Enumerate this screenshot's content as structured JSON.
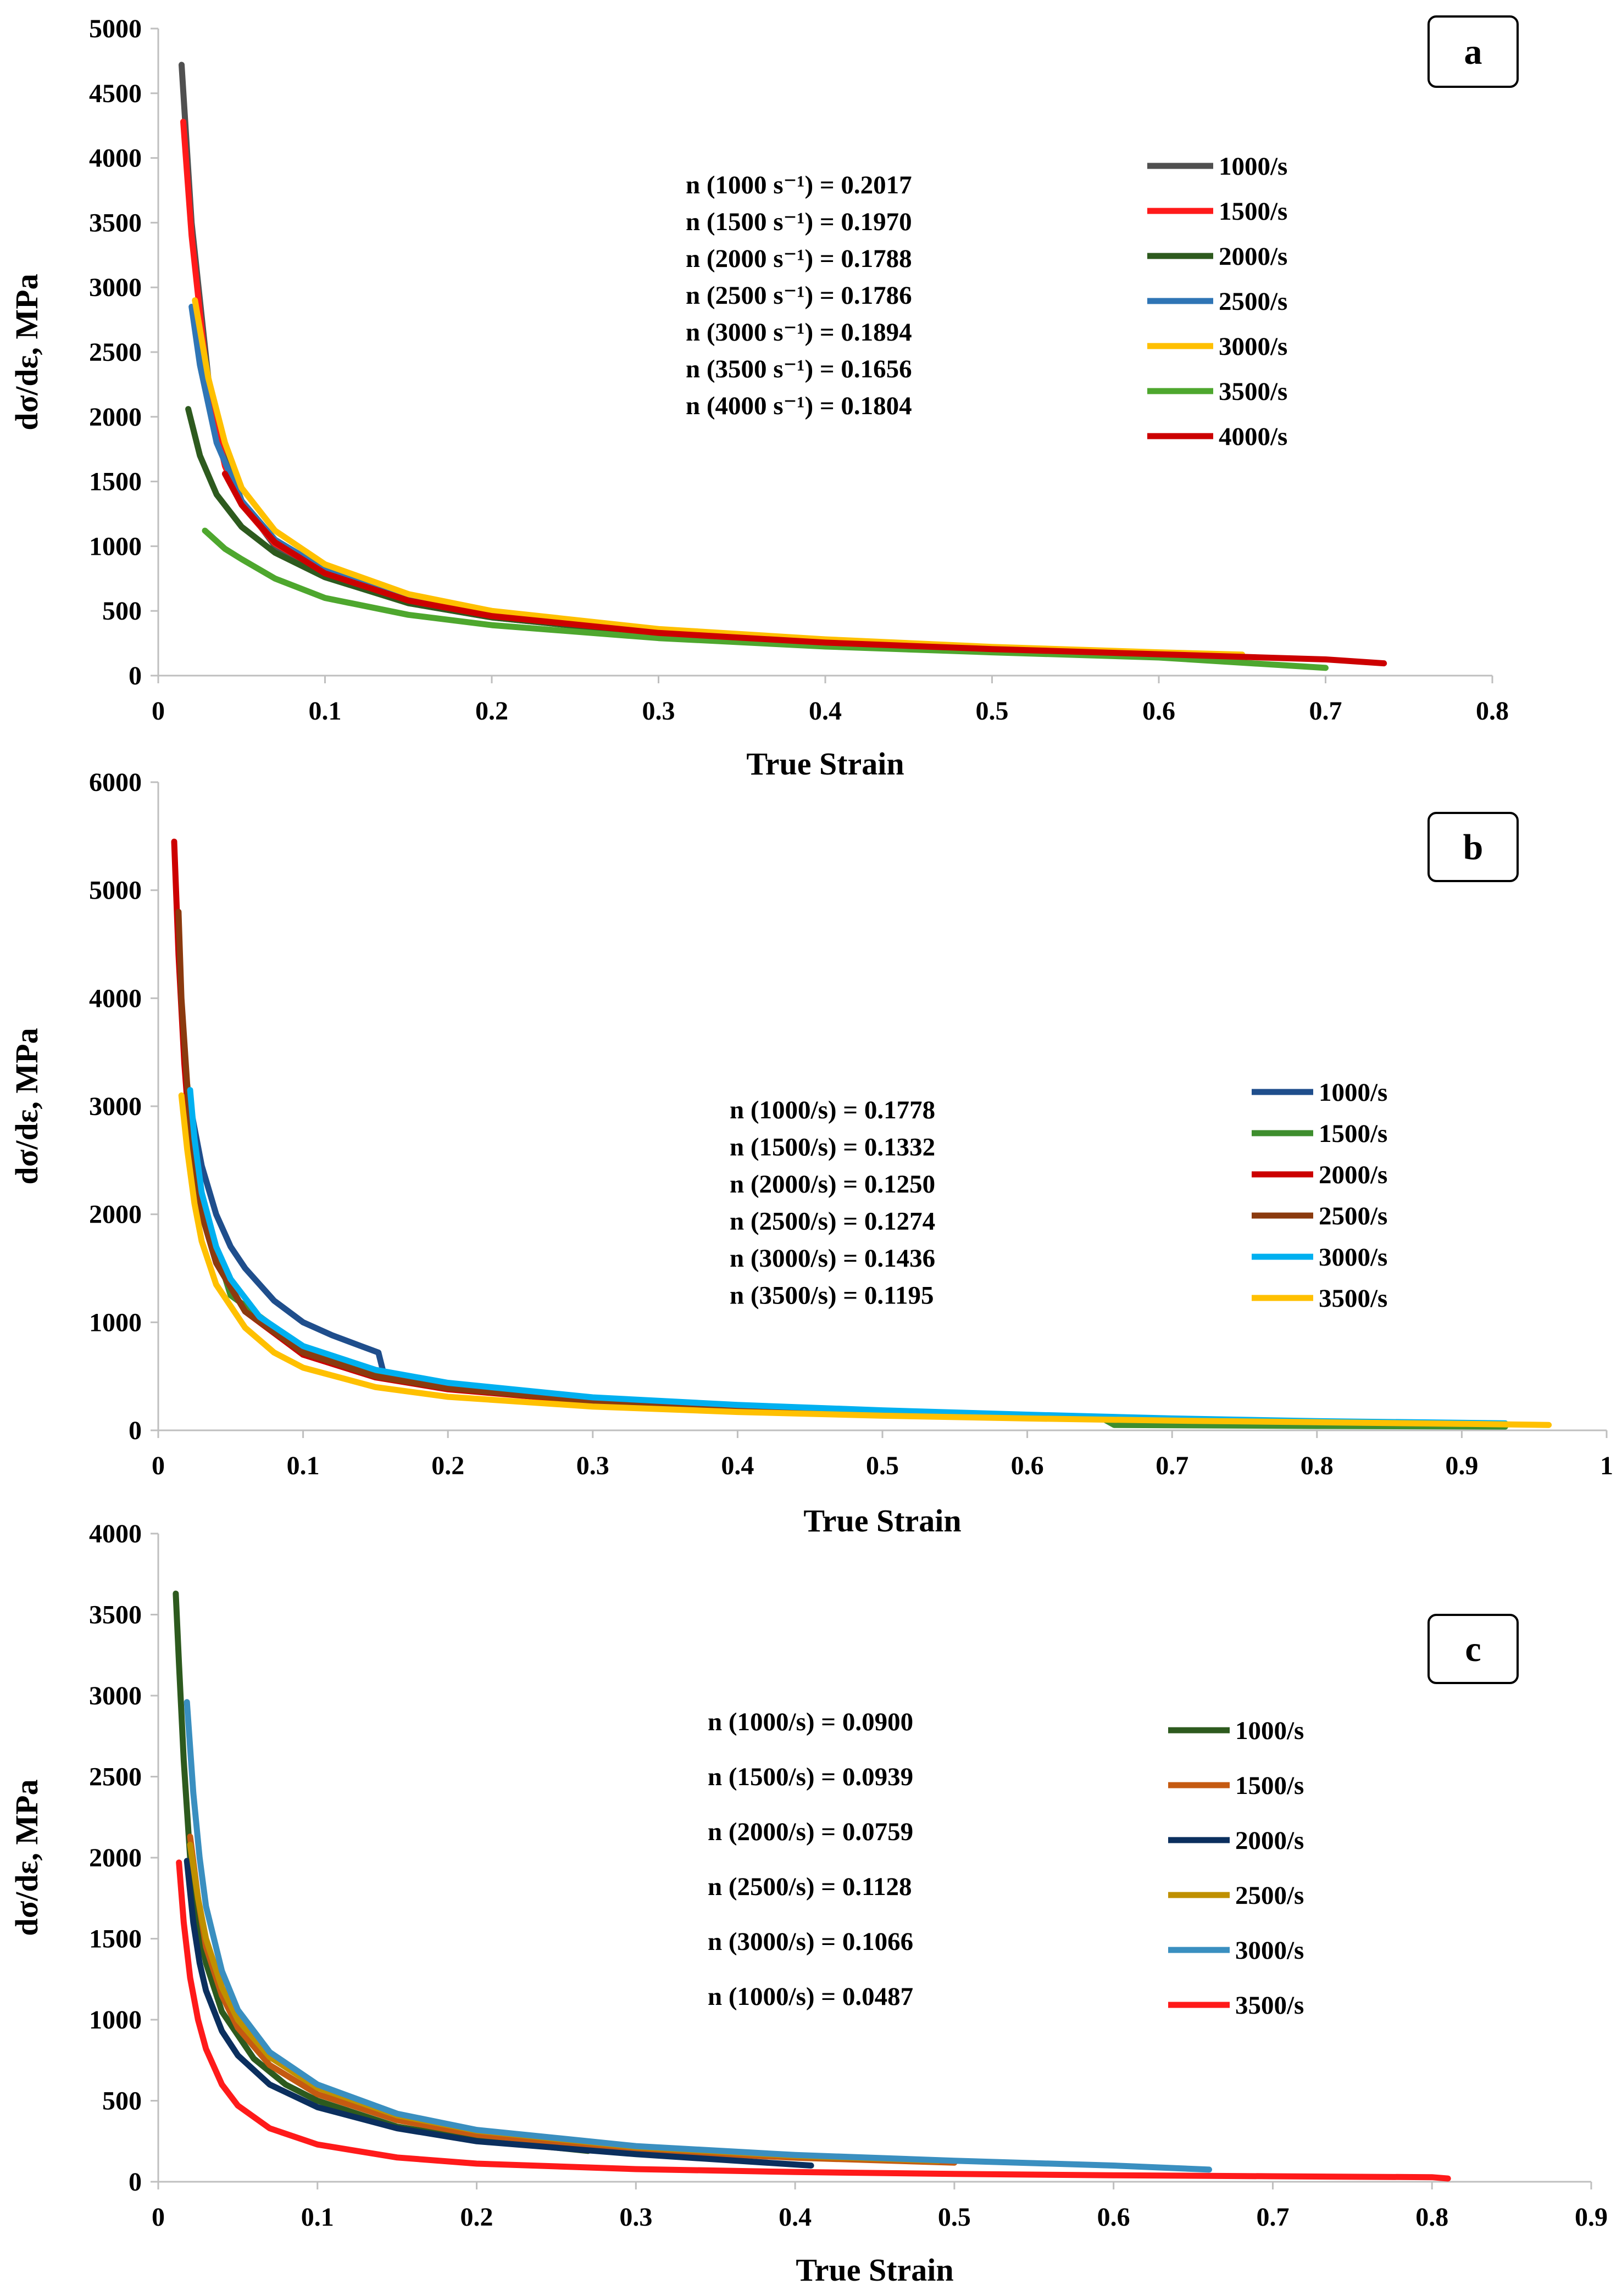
{
  "chart_data": [
    {
      "type": "line",
      "panel": "a",
      "xlabel": "True Strain",
      "ylabel": "dσ/dε, MPa",
      "xlim": [
        0,
        0.8
      ],
      "ylim": [
        0,
        5000
      ],
      "xticks": [
        0,
        0.1,
        0.2,
        0.3,
        0.4,
        0.5,
        0.6,
        0.7,
        0.8
      ],
      "xtick_labels": [
        "0",
        "0.1",
        "0.2",
        "0.3",
        "0.4",
        "0.5",
        "0.6",
        "0.7",
        "0.8"
      ],
      "yticks": [
        0,
        500,
        1000,
        1500,
        2000,
        2500,
        3000,
        3500,
        4000,
        4500,
        5000
      ],
      "ytick_labels": [
        "0",
        "500",
        "1000",
        "1500",
        "2000",
        "2500",
        "3000",
        "3500",
        "4000",
        "4500",
        "5000"
      ],
      "legend_position": "top-right",
      "annotations": [
        "n (1000 s⁻¹) = 0.2017",
        "n (1500 s⁻¹) = 0.1970",
        "n (2000 s⁻¹) = 0.1788",
        "n (2500 s⁻¹) = 0.1786",
        "n (3000 s⁻¹) = 0.1894",
        "n (3500 s⁻¹) = 0.1656",
        "n (4000 s⁻¹) = 0.1804"
      ],
      "series": [
        {
          "name": "1000/s",
          "color": "#505050",
          "x": [
            0.014,
            0.02,
            0.03,
            0.04,
            0.05,
            0.07,
            0.1,
            0.15,
            0.2,
            0.3,
            0.4,
            0.5,
            0.6,
            0.65
          ],
          "y": [
            4720,
            3500,
            2300,
            1700,
            1350,
            1000,
            780,
            560,
            450,
            320,
            250,
            200,
            160,
            145
          ]
        },
        {
          "name": "1500/s",
          "color": "#ff1a1a",
          "x": [
            0.015,
            0.02,
            0.03,
            0.04,
            0.05,
            0.07,
            0.1,
            0.15,
            0.2,
            0.3,
            0.4,
            0.5,
            0.6,
            0.65
          ],
          "y": [
            4280,
            3400,
            2200,
            1620,
            1320,
            1020,
            800,
            580,
            465,
            330,
            255,
            205,
            165,
            150
          ]
        },
        {
          "name": "2000/s",
          "color": "#2d5a1e",
          "x": [
            0.018,
            0.025,
            0.035,
            0.05,
            0.07,
            0.1,
            0.15,
            0.2,
            0.3,
            0.4,
            0.5,
            0.6,
            0.65
          ],
          "y": [
            2060,
            1700,
            1400,
            1150,
            950,
            760,
            560,
            450,
            320,
            250,
            200,
            165,
            150
          ]
        },
        {
          "name": "2500/s",
          "color": "#2f75b5",
          "x": [
            0.02,
            0.025,
            0.035,
            0.05,
            0.07,
            0.1,
            0.15,
            0.2,
            0.3,
            0.4,
            0.5,
            0.6,
            0.65
          ],
          "y": [
            2850,
            2400,
            1800,
            1350,
            1050,
            820,
            600,
            480,
            340,
            262,
            210,
            170,
            155
          ]
        },
        {
          "name": "3000/s",
          "color": "#ffc000",
          "x": [
            0.022,
            0.03,
            0.04,
            0.05,
            0.07,
            0.1,
            0.15,
            0.2,
            0.3,
            0.4,
            0.5,
            0.6,
            0.65
          ],
          "y": [
            2900,
            2300,
            1800,
            1450,
            1120,
            860,
            630,
            500,
            360,
            280,
            222,
            180,
            162
          ]
        },
        {
          "name": "3500/s",
          "color": "#4ea72e",
          "x": [
            0.028,
            0.04,
            0.05,
            0.07,
            0.1,
            0.15,
            0.2,
            0.3,
            0.4,
            0.5,
            0.6,
            0.7
          ],
          "y": [
            1120,
            980,
            900,
            750,
            600,
            470,
            390,
            290,
            225,
            180,
            140,
            60
          ]
        },
        {
          "name": "4000/s",
          "color": "#cc0000",
          "x": [
            0.04,
            0.05,
            0.07,
            0.1,
            0.15,
            0.2,
            0.3,
            0.4,
            0.5,
            0.6,
            0.7,
            0.735
          ],
          "y": [
            1560,
            1320,
            1030,
            790,
            580,
            460,
            330,
            255,
            205,
            165,
            125,
            95
          ]
        }
      ]
    },
    {
      "type": "line",
      "panel": "b",
      "xlabel": "True Strain",
      "ylabel": "dσ/dε, MPa",
      "xlim": [
        0,
        1
      ],
      "ylim": [
        0,
        6000
      ],
      "xticks": [
        0,
        0.1,
        0.2,
        0.3,
        0.4,
        0.5,
        0.6,
        0.7,
        0.8,
        0.9,
        1
      ],
      "xtick_labels": [
        "0",
        "0.1",
        "0.2",
        "0.3",
        "0.4",
        "0.5",
        "0.6",
        "0.7",
        "0.8",
        "0.9",
        "1"
      ],
      "yticks": [
        0,
        1000,
        2000,
        3000,
        4000,
        5000,
        6000
      ],
      "ytick_labels": [
        "0",
        "1000",
        "2000",
        "3000",
        "4000",
        "5000",
        "6000"
      ],
      "legend_position": "right",
      "annotations": [
        "n (1000/s) = 0.1778",
        "n (1500/s) = 0.1332",
        "n (2000/s) = 0.1250",
        "n (2500/s) = 0.1274",
        "n (3000/s) = 0.1436",
        "n (3500/s) = 0.1195"
      ],
      "series": [
        {
          "name": "1000/s",
          "color": "#1f4e8c",
          "x": [
            0.02,
            0.025,
            0.03,
            0.04,
            0.05,
            0.06,
            0.08,
            0.1,
            0.12,
            0.14,
            0.152,
            0.155
          ],
          "y": [
            3150,
            2800,
            2450,
            2000,
            1700,
            1500,
            1200,
            1000,
            880,
            780,
            720,
            560
          ]
        },
        {
          "name": "1500/s",
          "color": "#3e8e2e",
          "x": [
            0.02,
            0.03,
            0.05,
            0.1,
            0.15,
            0.2,
            0.3,
            0.4,
            0.5,
            0.6,
            0.65,
            0.66,
            0.8,
            0.93
          ],
          "y": [
            3200,
            2100,
            1250,
            760,
            520,
            400,
            280,
            215,
            170,
            135,
            125,
            50,
            40,
            35
          ]
        },
        {
          "name": "2000/s",
          "color": "#cc0000",
          "x": [
            0.011,
            0.014,
            0.018,
            0.022,
            0.03,
            0.04,
            0.06,
            0.1,
            0.15,
            0.2,
            0.3,
            0.4,
            0.5,
            0.6,
            0.66
          ],
          "y": [
            5450,
            4400,
            3400,
            2700,
            2000,
            1550,
            1100,
            700,
            490,
            380,
            265,
            205,
            165,
            130,
            115
          ]
        },
        {
          "name": "2500/s",
          "color": "#8b3a0e",
          "x": [
            0.014,
            0.016,
            0.02,
            0.025,
            0.03,
            0.04,
            0.06,
            0.1,
            0.15,
            0.2,
            0.3,
            0.4,
            0.5,
            0.6,
            0.66
          ],
          "y": [
            4800,
            4000,
            3200,
            2400,
            2000,
            1550,
            1100,
            720,
            500,
            390,
            270,
            210,
            168,
            135,
            120
          ]
        },
        {
          "name": "3000/s",
          "color": "#00b0f0",
          "x": [
            0.022,
            0.025,
            0.03,
            0.04,
            0.05,
            0.07,
            0.1,
            0.15,
            0.2,
            0.3,
            0.4,
            0.5,
            0.6,
            0.7,
            0.8,
            0.93
          ],
          "y": [
            3150,
            2700,
            2200,
            1700,
            1400,
            1050,
            780,
            560,
            440,
            305,
            235,
            185,
            145,
            110,
            85,
            65
          ]
        },
        {
          "name": "3500/s",
          "color": "#ffc000",
          "x": [
            0.016,
            0.02,
            0.025,
            0.03,
            0.04,
            0.06,
            0.08,
            0.1,
            0.15,
            0.2,
            0.3,
            0.4,
            0.5,
            0.6,
            0.7,
            0.8,
            0.9,
            0.96
          ],
          "y": [
            3100,
            2600,
            2100,
            1750,
            1350,
            950,
            720,
            580,
            400,
            310,
            220,
            170,
            135,
            110,
            90,
            75,
            60,
            50
          ]
        }
      ]
    },
    {
      "type": "line",
      "panel": "c",
      "xlabel": "True Strain",
      "ylabel": "dσ/dε, MPa",
      "xlim": [
        0,
        0.9
      ],
      "ylim": [
        0,
        4000
      ],
      "xticks": [
        0,
        0.1,
        0.2,
        0.3,
        0.4,
        0.5,
        0.6,
        0.7,
        0.8,
        0.9
      ],
      "xtick_labels": [
        "0",
        "0.1",
        "0.2",
        "0.3",
        "0.4",
        "0.5",
        "0.6",
        "0.7",
        "0.8",
        "0.9"
      ],
      "yticks": [
        0,
        500,
        1000,
        1500,
        2000,
        2500,
        3000,
        3500,
        4000
      ],
      "ytick_labels": [
        "0",
        "500",
        "1000",
        "1500",
        "2000",
        "2500",
        "3000",
        "3500",
        "4000"
      ],
      "legend_position": "right",
      "annotations": [
        "n (1000/s) = 0.0900",
        "n (1500/s) = 0.0939",
        "n (2000/s) = 0.0759",
        "n (2500/s) = 0.1128",
        "n (3000/s) = 0.1066",
        "n (1000/s) = 0.0487"
      ],
      "series": [
        {
          "name": "1000/s",
          "color": "#2d5a1e",
          "x": [
            0.011,
            0.013,
            0.016,
            0.02,
            0.025,
            0.03,
            0.04,
            0.06,
            0.08,
            0.1,
            0.15,
            0.2,
            0.27
          ],
          "y": [
            3630,
            3200,
            2600,
            2000,
            1600,
            1350,
            1050,
            760,
            600,
            500,
            340,
            260,
            190
          ]
        },
        {
          "name": "1500/s",
          "color": "#c55a11",
          "x": [
            0.02,
            0.025,
            0.03,
            0.04,
            0.05,
            0.07,
            0.1,
            0.15,
            0.2,
            0.3,
            0.4,
            0.5
          ],
          "y": [
            2130,
            1750,
            1450,
            1150,
            950,
            720,
            540,
            380,
            290,
            195,
            148,
            118
          ]
        },
        {
          "name": "2000/s",
          "color": "#0b2f5e",
          "x": [
            0.018,
            0.022,
            0.026,
            0.03,
            0.04,
            0.05,
            0.07,
            0.1,
            0.15,
            0.2,
            0.3,
            0.41
          ],
          "y": [
            1980,
            1600,
            1350,
            1180,
            930,
            780,
            600,
            460,
            330,
            250,
            170,
            100
          ]
        },
        {
          "name": "2500/s",
          "color": "#bf9000",
          "x": [
            0.02,
            0.025,
            0.03,
            0.04,
            0.05,
            0.07,
            0.1,
            0.15,
            0.2,
            0.3,
            0.4,
            0.49
          ],
          "y": [
            2080,
            1750,
            1500,
            1200,
            1000,
            770,
            580,
            410,
            315,
            215,
            160,
            130
          ]
        },
        {
          "name": "3000/s",
          "color": "#3a8fc0",
          "x": [
            0.018,
            0.022,
            0.026,
            0.03,
            0.04,
            0.05,
            0.07,
            0.1,
            0.15,
            0.2,
            0.3,
            0.4,
            0.5,
            0.6,
            0.66
          ],
          "y": [
            2960,
            2400,
            2000,
            1700,
            1300,
            1060,
            800,
            600,
            420,
            320,
            220,
            165,
            130,
            100,
            75
          ]
        },
        {
          "name": "3500/s",
          "color": "#ff1a1a",
          "x": [
            0.013,
            0.016,
            0.02,
            0.025,
            0.03,
            0.04,
            0.05,
            0.07,
            0.1,
            0.15,
            0.2,
            0.3,
            0.4,
            0.5,
            0.6,
            0.7,
            0.8,
            0.81
          ],
          "y": [
            1970,
            1600,
            1260,
            1000,
            820,
            600,
            470,
            330,
            230,
            150,
            112,
            78,
            60,
            48,
            40,
            34,
            28,
            20
          ]
        }
      ]
    }
  ]
}
